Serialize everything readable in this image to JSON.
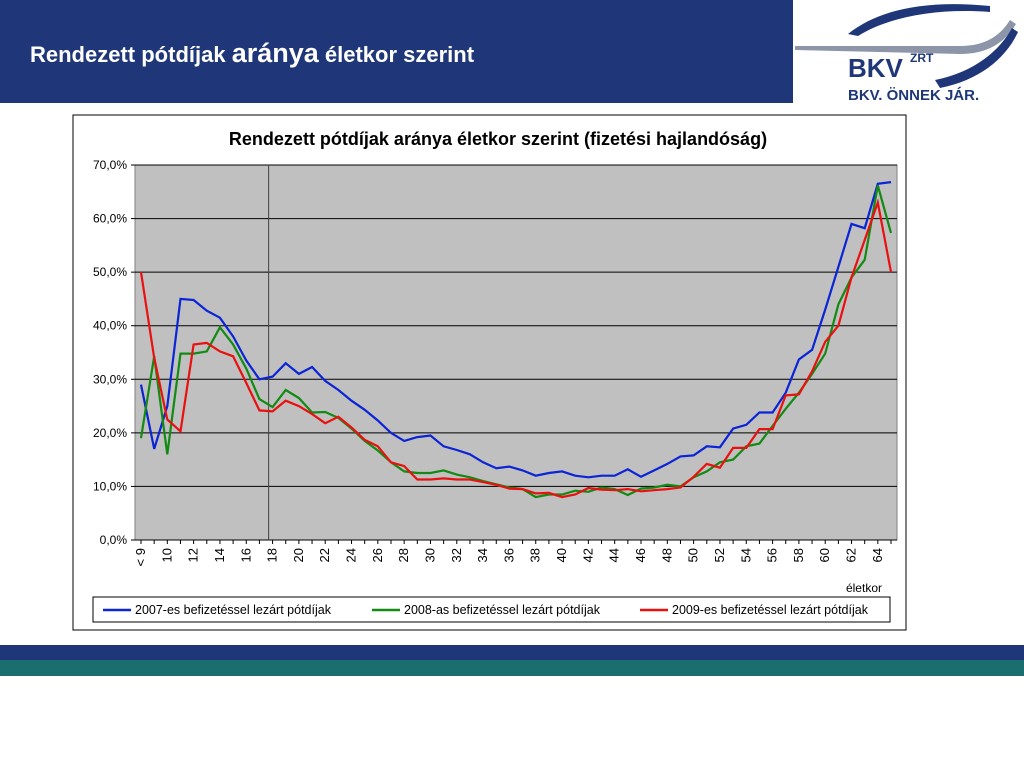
{
  "header": {
    "title_parts": [
      "Rendezett pótdíjak ",
      "aránya",
      " életkor szerint"
    ],
    "logo": "BKV",
    "logo_sup": "ZRT",
    "slogan": "BKV. ÖNNEK JÁR."
  },
  "chart_data": {
    "type": "line",
    "title": "Rendezett pótdíjak aránya életkor szerint (fizetési hajlandóság)",
    "x_label": "életkor",
    "categories": [
      "< 9",
      null,
      "10",
      null,
      "12",
      null,
      "14",
      null,
      "16",
      null,
      "18",
      null,
      "20",
      null,
      "22",
      null,
      "24",
      null,
      "26",
      null,
      "28",
      null,
      "30",
      null,
      "32",
      null,
      "34",
      null,
      "36",
      null,
      "38",
      null,
      "40",
      null,
      "42",
      null,
      "44",
      null,
      "46",
      null,
      "48",
      null,
      "50",
      null,
      "52",
      null,
      "54",
      null,
      "56",
      null,
      "58",
      null,
      "60",
      null,
      "62",
      null,
      "64",
      null
    ],
    "ylim": [
      0,
      70
    ],
    "yticks": [
      {
        "value": 0,
        "label": "0,0%"
      },
      {
        "value": 10,
        "label": "10,0%"
      },
      {
        "value": 20,
        "label": "20,0%"
      },
      {
        "value": 30,
        "label": "30,0%"
      },
      {
        "value": 40,
        "label": "40,0%"
      },
      {
        "value": 50,
        "label": "50,0%"
      },
      {
        "value": 60,
        "label": "60,0%"
      },
      {
        "value": 70,
        "label": "70,0%"
      }
    ],
    "grid": true,
    "legend": "bottom",
    "series": [
      {
        "name": "2007-es befizetéssel lezárt pótdíjak",
        "color": "#0b24d6",
        "values": [
          29,
          17,
          25,
          45,
          44.8,
          42.8,
          41.5,
          38,
          33.5,
          30,
          30.5,
          33,
          31,
          32.3,
          29.7,
          28,
          26,
          24.3,
          22.3,
          20,
          18.5,
          19.2,
          19.5,
          17.5,
          16.8,
          16,
          14.5,
          13.4,
          13.7,
          13,
          12,
          12.5,
          12.8,
          12,
          11.7,
          12,
          12,
          13.2,
          11.8,
          13,
          14.2,
          15.6,
          15.8,
          17.5,
          17.3,
          20.8,
          21.5,
          23.8,
          23.8,
          27.5,
          33.7,
          35.5,
          43,
          51,
          59,
          58.2,
          66.5,
          66.8
        ]
      },
      {
        "name": "2008-as befizetéssel lezárt pótdíjak",
        "color": "#138a13",
        "values": [
          19,
          34.3,
          16,
          34.8,
          34.8,
          35.2,
          39.7,
          36.5,
          32,
          26.3,
          24.8,
          28,
          26.5,
          23.8,
          23.9,
          22.8,
          20.8,
          18.5,
          16.7,
          14.5,
          12.8,
          12.5,
          12.5,
          13,
          12.2,
          11.7,
          11,
          10.4,
          9.8,
          9.5,
          8,
          8.5,
          8.5,
          9.2,
          9,
          9.8,
          9.5,
          8.4,
          9.6,
          9.8,
          10.3,
          10,
          11.7,
          12.8,
          14.5,
          15,
          17.5,
          18,
          21.3,
          24.5,
          27.5,
          31,
          34.8,
          44,
          49,
          52.3,
          66.2,
          57.3
        ]
      },
      {
        "name": "2009-es befizetéssel lezárt pótdíjak",
        "color": "#e8110f",
        "values": [
          50,
          34,
          22.5,
          20.3,
          36.5,
          36.8,
          35.2,
          34.3,
          29.3,
          24.2,
          24,
          26,
          25,
          23.5,
          21.8,
          23,
          21,
          18.7,
          17.5,
          14.5,
          13.8,
          11.3,
          11.3,
          11.5,
          11.3,
          11.3,
          10.8,
          10.3,
          9.6,
          9.5,
          8.7,
          8.8,
          8,
          8.5,
          9.7,
          9.4,
          9.3,
          9.5,
          9.1,
          9.3,
          9.5,
          9.8,
          11.8,
          14.2,
          13.5,
          17.2,
          17.2,
          20.7,
          20.7,
          27,
          27.2,
          31.5,
          37,
          40,
          49,
          56,
          63,
          50
        ]
      }
    ]
  }
}
